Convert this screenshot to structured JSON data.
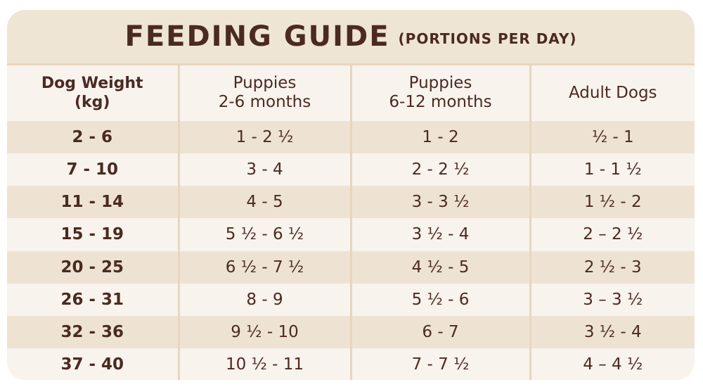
{
  "title": {
    "main": "FEEDING GUIDE",
    "sub": "(PORTIONS PER DAY)"
  },
  "columns": [
    {
      "line1": "Dog Weight",
      "line2": "(kg)"
    },
    {
      "line1": "Puppies",
      "line2": "2-6 months"
    },
    {
      "line1": "Puppies",
      "line2": "6-12 months"
    },
    {
      "line1": "Adult Dogs",
      "line2": ""
    }
  ],
  "rows": [
    [
      "2 - 6",
      "1 - 2 ½",
      "1 - 2",
      "½ - 1"
    ],
    [
      "7 - 10",
      "3 - 4",
      "2 - 2 ½",
      "1 - 1 ½"
    ],
    [
      "11 - 14",
      "4 - 5",
      "3 - 3 ½",
      "1 ½ - 2"
    ],
    [
      "15 - 19",
      "5 ½ - 6 ½",
      "3 ½ - 4",
      "2 – 2 ½"
    ],
    [
      "20 - 25",
      "6 ½ - 7 ½",
      "4 ½ - 5",
      "2 ½ - 3"
    ],
    [
      "26 - 31",
      "8 - 9",
      "5 ½ - 6",
      "3 – 3 ½"
    ],
    [
      "32 - 36",
      "9 ½ - 10",
      "6 - 7",
      "3 ½ - 4"
    ],
    [
      "37 - 40",
      "10 ½ - 11",
      "7 - 7 ½",
      "4 – 4 ½"
    ]
  ],
  "colors": {
    "text": "#4a2a22",
    "band": "#eee3d3",
    "background": "#f8f3ec",
    "divider": "#e6d6bd"
  }
}
